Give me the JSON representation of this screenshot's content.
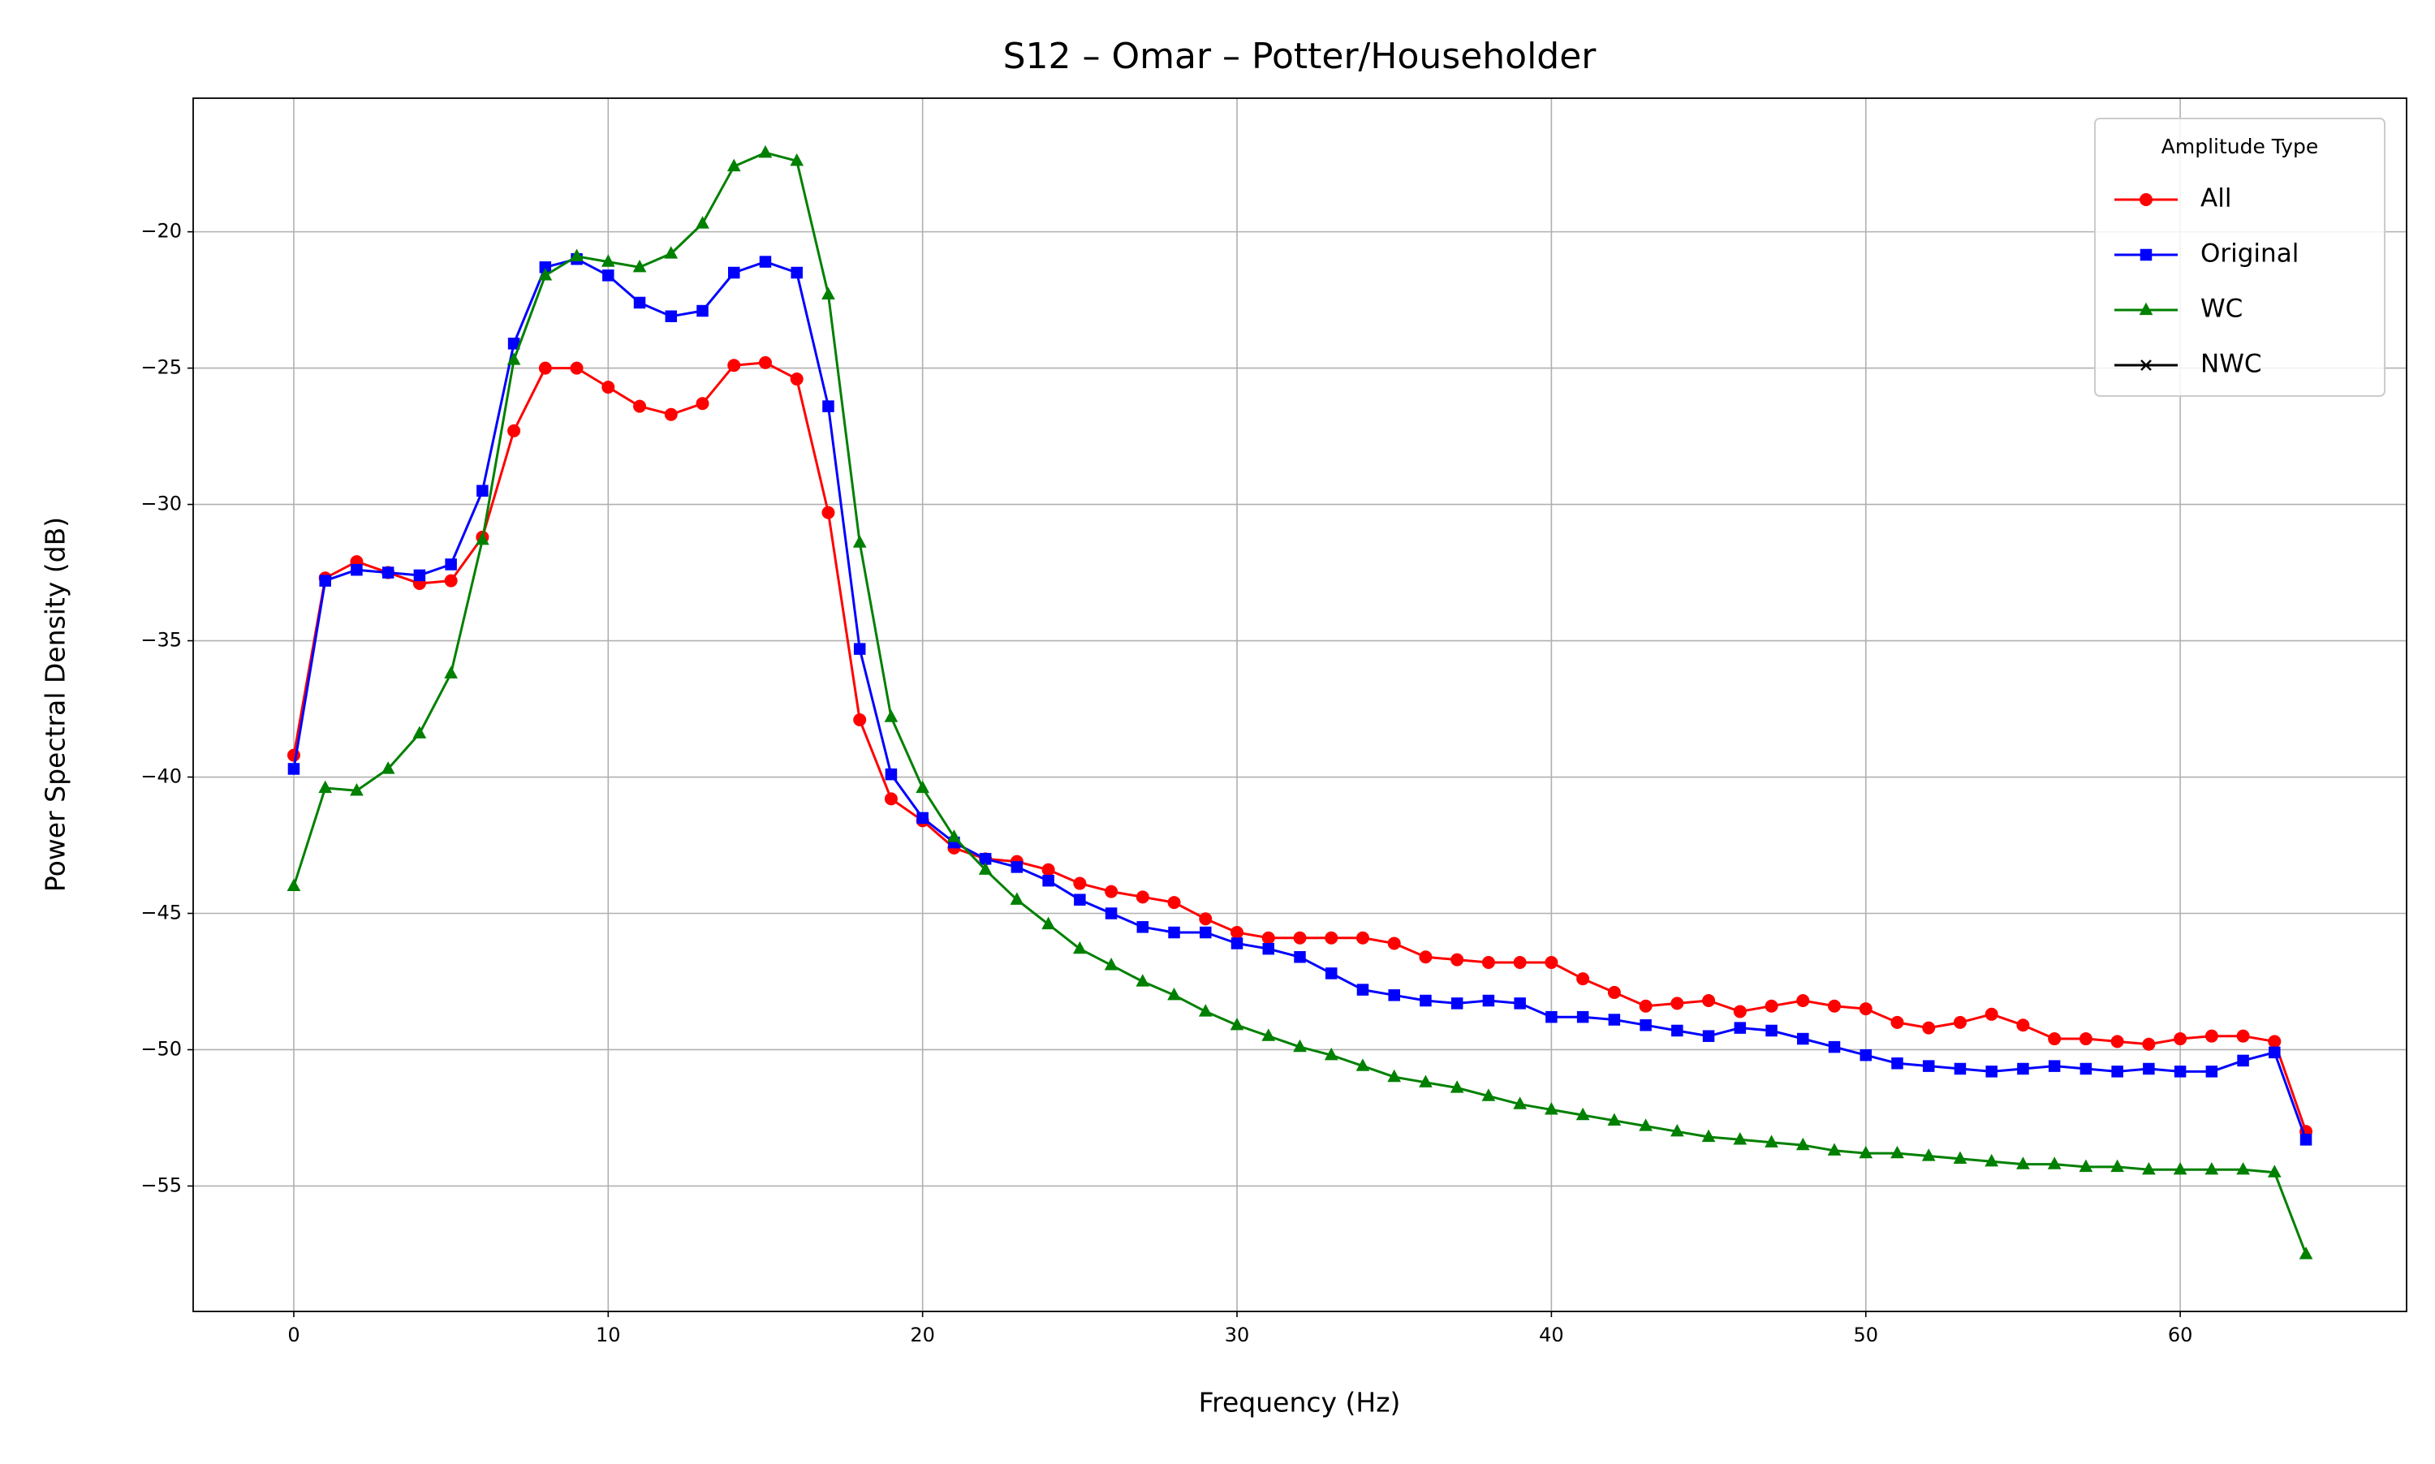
{
  "chart_data": {
    "type": "line",
    "title": "S12 – Omar – Potter/Householder",
    "x_label": "Frequency (Hz)",
    "y_label": "Power Spectral Density (dB)",
    "legend_title": "Amplitude Type",
    "legend": "upper right",
    "grid": true,
    "x": [
      0,
      1,
      2,
      3,
      4,
      5,
      6,
      7,
      8,
      9,
      10,
      11,
      12,
      13,
      14,
      15,
      16,
      17,
      18,
      19,
      20,
      21,
      22,
      23,
      24,
      25,
      26,
      27,
      28,
      29,
      30,
      31,
      32,
      33,
      34,
      35,
      36,
      37,
      38,
      39,
      40,
      41,
      42,
      43,
      44,
      45,
      46,
      47,
      48,
      49,
      50,
      51,
      52,
      53,
      54,
      55,
      56,
      57,
      58,
      59,
      60,
      61,
      62,
      63,
      64
    ],
    "xlim": [
      -3.2,
      67.2
    ],
    "xticks": [
      0,
      10,
      20,
      30,
      40,
      50,
      60
    ],
    "ylim": [
      -59.6,
      -15.1
    ],
    "yticks": [
      {
        "value": -20,
        "label": "−20"
      },
      {
        "value": -25,
        "label": "−25"
      },
      {
        "value": -30,
        "label": "−30"
      },
      {
        "value": -35,
        "label": "−35"
      },
      {
        "value": -40,
        "label": "−40"
      },
      {
        "value": -45,
        "label": "−45"
      },
      {
        "value": -50,
        "label": "−50"
      },
      {
        "value": -55,
        "label": "−55"
      }
    ],
    "series": [
      {
        "name": "All",
        "color": "#ff0000",
        "marker": "circle",
        "values": [
          -39.2,
          -32.7,
          -32.1,
          -32.5,
          -32.9,
          -32.8,
          -31.2,
          -27.3,
          -25.0,
          -25.0,
          -25.7,
          -26.4,
          -26.7,
          -26.3,
          -24.9,
          -24.8,
          -25.4,
          -30.3,
          -37.9,
          -40.8,
          -41.6,
          -42.6,
          -43.0,
          -43.1,
          -43.4,
          -43.9,
          -44.2,
          -44.4,
          -44.6,
          -45.2,
          -45.7,
          -45.9,
          -45.9,
          -45.9,
          -45.9,
          -46.1,
          -46.6,
          -46.7,
          -46.8,
          -46.8,
          -46.8,
          -47.4,
          -47.9,
          -48.4,
          -48.3,
          -48.2,
          -48.6,
          -48.4,
          -48.2,
          -48.4,
          -48.5,
          -49.0,
          -49.2,
          -49.0,
          -48.7,
          -49.1,
          -49.6,
          -49.6,
          -49.7,
          -49.8,
          -49.6,
          -49.5,
          -49.5,
          -49.7,
          -53.0
        ]
      },
      {
        "name": "Original",
        "color": "#0000ff",
        "marker": "square",
        "values": [
          -39.7,
          -32.8,
          -32.4,
          -32.5,
          -32.6,
          -32.2,
          -29.5,
          -24.1,
          -21.3,
          -21.0,
          -21.6,
          -22.6,
          -23.1,
          -22.9,
          -21.5,
          -21.1,
          -21.5,
          -26.4,
          -35.3,
          -39.9,
          -41.5,
          -42.4,
          -43.0,
          -43.3,
          -43.8,
          -44.5,
          -45.0,
          -45.5,
          -45.7,
          -45.7,
          -46.1,
          -46.3,
          -46.6,
          -47.2,
          -47.8,
          -48.0,
          -48.2,
          -48.3,
          -48.2,
          -48.3,
          -48.8,
          -48.8,
          -48.9,
          -49.1,
          -49.3,
          -49.5,
          -49.2,
          -49.3,
          -49.6,
          -49.9,
          -50.2,
          -50.5,
          -50.6,
          -50.7,
          -50.8,
          -50.7,
          -50.6,
          -50.7,
          -50.8,
          -50.7,
          -50.8,
          -50.8,
          -50.4,
          -50.1,
          -53.3
        ]
      },
      {
        "name": "WC",
        "color": "#008000",
        "marker": "triangle",
        "values": [
          -44.0,
          -40.4,
          -40.5,
          -39.7,
          -38.4,
          -36.2,
          -31.3,
          -24.7,
          -21.6,
          -20.9,
          -21.1,
          -21.3,
          -20.8,
          -19.7,
          -17.6,
          -17.1,
          -17.4,
          -22.3,
          -31.4,
          -37.8,
          -40.4,
          -42.2,
          -43.4,
          -44.5,
          -45.4,
          -46.3,
          -46.9,
          -47.5,
          -48.0,
          -48.6,
          -49.1,
          -49.5,
          -49.9,
          -50.2,
          -50.6,
          -51.0,
          -51.2,
          -51.4,
          -51.7,
          -52.0,
          -52.2,
          -52.4,
          -52.6,
          -52.8,
          -53.0,
          -53.2,
          -53.3,
          -53.4,
          -53.5,
          -53.7,
          -53.8,
          -53.8,
          -53.9,
          -54.0,
          -54.1,
          -54.2,
          -54.2,
          -54.3,
          -54.3,
          -54.4,
          -54.4,
          -54.4,
          -54.4,
          -54.5,
          -57.5
        ]
      },
      {
        "name": "NWC",
        "color": "#000000",
        "marker": "x",
        "values": [
          null,
          null,
          null,
          null,
          null,
          null,
          null,
          null,
          null,
          null,
          null,
          null,
          null,
          null,
          null,
          null,
          null,
          null,
          null,
          null,
          null,
          null,
          null,
          null,
          null,
          null,
          null,
          null,
          null,
          null,
          null,
          null,
          null,
          null,
          null,
          null,
          null,
          null,
          null,
          null,
          null,
          null,
          null,
          null,
          null,
          null,
          null,
          null,
          null,
          null,
          null,
          null,
          null,
          null,
          null,
          null,
          null,
          null,
          null,
          null,
          null,
          null,
          null,
          null,
          null
        ]
      }
    ]
  }
}
